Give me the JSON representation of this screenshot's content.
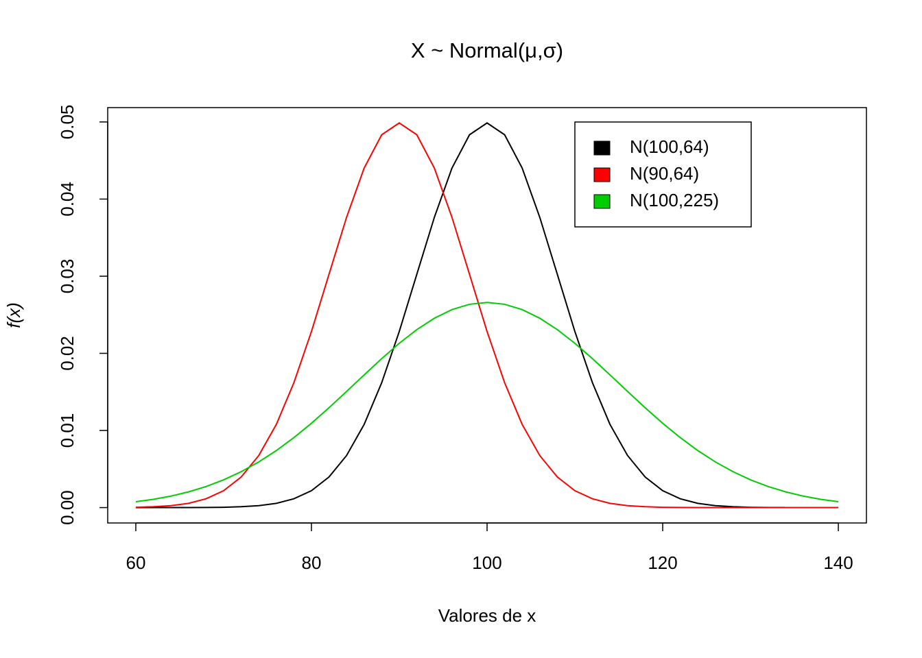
{
  "chart_data": {
    "type": "line",
    "title": "X ~ Normal(μ,σ)",
    "x_label": "Valores de x",
    "y_label": "f(x)",
    "x": [
      60,
      62,
      64,
      66,
      68,
      70,
      72,
      74,
      76,
      78,
      80,
      82,
      84,
      86,
      88,
      90,
      92,
      94,
      96,
      98,
      100,
      102,
      104,
      106,
      108,
      110,
      112,
      114,
      116,
      118,
      120,
      122,
      124,
      126,
      128,
      130,
      132,
      134,
      136,
      138,
      140
    ],
    "series": [
      {
        "name": "N(100,64)",
        "color": "#000000",
        "values": [
          0,
          0,
          0,
          1e-05,
          2e-05,
          4e-05,
          0.00011,
          0.00025,
          0.00055,
          0.00114,
          0.00219,
          0.00397,
          0.00675,
          0.01078,
          0.01619,
          0.02283,
          0.03025,
          0.03764,
          0.04401,
          0.04834,
          0.04987,
          0.04834,
          0.04401,
          0.03764,
          0.03025,
          0.02283,
          0.01619,
          0.01078,
          0.00675,
          0.00397,
          0.00219,
          0.00114,
          0.00055,
          0.00025,
          0.00011,
          4e-05,
          2e-05,
          1e-05,
          0,
          0,
          0
        ]
      },
      {
        "name": "N(90,64)",
        "color": "#ff0000",
        "values": [
          4e-05,
          0.00011,
          0.00025,
          0.00055,
          0.00114,
          0.00219,
          0.00397,
          0.00675,
          0.01078,
          0.01619,
          0.02283,
          0.03025,
          0.03764,
          0.04401,
          0.04834,
          0.04987,
          0.04834,
          0.04401,
          0.03764,
          0.03025,
          0.02283,
          0.01619,
          0.01078,
          0.00675,
          0.00397,
          0.00219,
          0.00114,
          0.00055,
          0.00025,
          0.00011,
          4e-05,
          2e-05,
          1e-05,
          0,
          0,
          0,
          0,
          0,
          0,
          0,
          0
        ]
      },
      {
        "name": "N(100,225)",
        "color": "#00cd00",
        "values": [
          0.00076,
          0.00107,
          0.00149,
          0.00204,
          0.00273,
          0.0036,
          0.00466,
          0.00592,
          0.00739,
          0.00907,
          0.01093,
          0.01295,
          0.01506,
          0.0172,
          0.01931,
          0.0213,
          0.02307,
          0.02455,
          0.02567,
          0.02636,
          0.0266,
          0.02636,
          0.02567,
          0.02455,
          0.02307,
          0.0213,
          0.01931,
          0.0172,
          0.01506,
          0.01295,
          0.01093,
          0.00907,
          0.00739,
          0.00592,
          0.00466,
          0.0036,
          0.00273,
          0.00204,
          0.00149,
          0.00107,
          0.00076
        ]
      }
    ],
    "xlim": [
      56.8,
      143.2
    ],
    "ylim": [
      -0.001995,
      0.05186
    ],
    "xticks": [
      60,
      80,
      100,
      120,
      140
    ],
    "yticks": [
      {
        "value": 0,
        "label": "0.00"
      },
      0.01,
      0.02,
      0.03,
      0.04,
      0.05
    ],
    "legend": "topright"
  }
}
